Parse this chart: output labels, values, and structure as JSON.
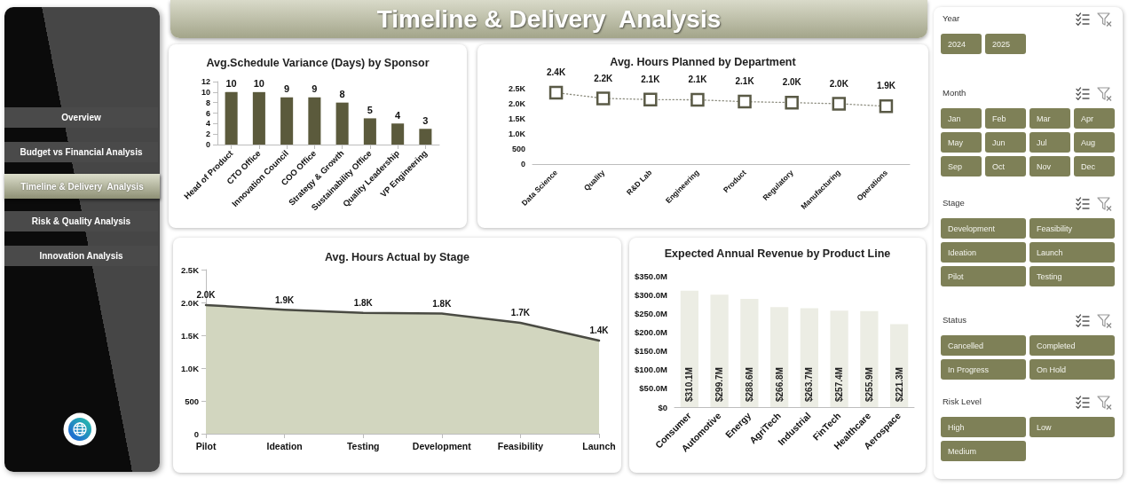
{
  "chart_data": [
    {
      "type": "other",
      "annotations": [
        "Overview",
        "Budget vs Financial Analysis",
        "Timeline & Delivery  Analysis",
        "Risk & Quality Analysis",
        "Innovation Analysis"
      ]
    },
    {
      "type": "other",
      "title": "Timeline & Delivery  Analysis"
    },
    {
      "type": "bar",
      "title": "Avg.Schedule Variance (Days) by Sponsor",
      "categories": [
        "Head of Product",
        "CTO Office",
        "Innovation Council",
        "COO Office",
        "Strategy & Growth",
        "Sustainability Office",
        "Quality Leadership",
        "VP Engineering"
      ],
      "values": [
        10,
        10,
        9,
        9,
        8,
        5,
        4,
        3
      ],
      "color": "#5b5a3c",
      "ylim": [
        0,
        12
      ],
      "yticks": [
        0,
        2,
        4,
        6,
        8,
        10,
        12
      ],
      "data_labels": true
    },
    {
      "type": "line",
      "title": "Avg. Hours Planned by Department",
      "categories": [
        "Data Science",
        "Quality",
        "R&D Lab",
        "Engineering",
        "Product",
        "Regulatory",
        "Manufacturing",
        "Operations"
      ],
      "values": [
        2370,
        2180,
        2140,
        2130,
        2070,
        2040,
        2000,
        1920
      ],
      "value_labels": [
        "2.4K",
        "2.2K",
        "2.1K",
        "2.1K",
        "2.1K",
        "2.0K",
        "2.0K",
        "1.9K"
      ],
      "color": "#5a5a46",
      "marker": "square",
      "line_style": "dotted",
      "ylim": [
        0,
        2500
      ],
      "yticks": [
        0,
        500,
        {
          "value": 1000,
          "label": "1.0K"
        },
        {
          "value": 1500,
          "label": "1.5K"
        },
        {
          "value": 2000,
          "label": "2.0K"
        },
        {
          "value": 2500,
          "label": "2.5K"
        }
      ]
    },
    {
      "type": "area",
      "title": "Avg. Hours Actual by Stage",
      "categories": [
        "Pilot",
        "Ideation",
        "Testing",
        "Development",
        "Feasibility",
        "Launch"
      ],
      "values": [
        1960,
        1890,
        1840,
        1830,
        1690,
        1420
      ],
      "value_labels": [
        "2.0K",
        "1.9K",
        "1.8K",
        "1.8K",
        "1.7K",
        "1.4K"
      ],
      "color": "#d2d6bf",
      "ylim": [
        0,
        2500
      ],
      "yticks": [
        0,
        500,
        {
          "value": 1000,
          "label": "1.0K"
        },
        {
          "value": 1500,
          "label": "1.5K"
        },
        {
          "value": 2000,
          "label": "2.0K"
        },
        {
          "value": 2500,
          "label": "2.5K"
        }
      ]
    },
    {
      "type": "bar",
      "title": "Expected Annual Revenue by Product Line",
      "categories": [
        "Consumer",
        "Automotive",
        "Energy",
        "AgriTech",
        "Industrial",
        "FinTech",
        "Healthcare",
        "Aerospace"
      ],
      "values": [
        310.1,
        299.7,
        288.6,
        266.8,
        263.7,
        257.4,
        255.9,
        221.3
      ],
      "value_labels": [
        "$310.1M",
        "$299.7M",
        "$288.6M",
        "$266.8M",
        "$263.7M",
        "$257.4M",
        "$255.9M",
        "$221.3M"
      ],
      "color": "#ecede4",
      "ylim": [
        0,
        350
      ],
      "yticks": [
        {
          "value": 0,
          "label": "$0"
        },
        {
          "value": 50,
          "label": "$50.0M"
        },
        {
          "value": 100,
          "label": "$100.0M"
        },
        {
          "value": 150,
          "label": "$150.0M"
        },
        {
          "value": 200,
          "label": "$200.0M"
        },
        {
          "value": 250,
          "label": "$250.0M"
        },
        {
          "value": 300,
          "label": "$300.0M"
        },
        {
          "value": 350,
          "label": "$350.0M"
        }
      ]
    },
    {
      "type": "other",
      "title": "Year",
      "annotations": [
        "2024",
        "2025"
      ]
    },
    {
      "type": "other",
      "title": "Month",
      "annotations": [
        "Jan",
        "Feb",
        "Mar",
        "Apr",
        "May",
        "Jun",
        "Jul",
        "Aug",
        "Sep",
        "Oct",
        "Nov",
        "Dec"
      ]
    },
    {
      "type": "other",
      "title": "Stage",
      "annotations": [
        "Development",
        "Feasibility",
        "Ideation",
        "Launch",
        "Pilot",
        "Testing"
      ]
    },
    {
      "type": "other",
      "title": "Status",
      "annotations": [
        "Cancelled",
        "Completed",
        "In Progress",
        "On Hold"
      ]
    },
    {
      "type": "other",
      "title": "Risk Level",
      "annotations": [
        "High",
        "Low",
        "Medium"
      ]
    }
  ]
}
